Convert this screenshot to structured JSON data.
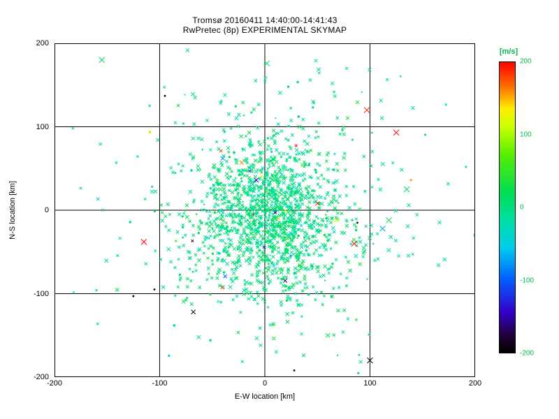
{
  "figure": {
    "background": "#ffffff",
    "axis_color": "#000000"
  },
  "chart_data": {
    "type": "scatter",
    "title_line1": "Tromsø 20160411 14:40:00-14:41:43",
    "title_line2": "RwPretec (8p) EXPERIMENTAL SKYMAP",
    "xlabel": "E-W location [km]",
    "ylabel": "N-S location [km]",
    "xlim": [
      -200,
      200
    ],
    "ylim": [
      -200,
      200
    ],
    "xticks": [
      -200,
      -100,
      0,
      100,
      200
    ],
    "yticks": [
      -200,
      -100,
      0,
      100,
      200
    ],
    "grid": true,
    "marker": "x",
    "point_base_color": "#00dd66",
    "colorbar": {
      "label": "[m/s]",
      "min": -200,
      "max": 200,
      "ticks": [
        200,
        100,
        0,
        -100,
        -200
      ],
      "label_color": "#00bb44",
      "stops": [
        [
          0.0,
          "#000000"
        ],
        [
          0.06,
          "#22003a"
        ],
        [
          0.14,
          "#3300cc"
        ],
        [
          0.26,
          "#0066ff"
        ],
        [
          0.36,
          "#00ccee"
        ],
        [
          0.46,
          "#00e0a0"
        ],
        [
          0.55,
          "#00dd55"
        ],
        [
          0.68,
          "#55ee00"
        ],
        [
          0.78,
          "#ccff00"
        ],
        [
          0.84,
          "#ffee00"
        ],
        [
          0.91,
          "#ff7700"
        ],
        [
          1.0,
          "#ff0000"
        ]
      ]
    },
    "cluster": {
      "seed": 20160411,
      "count": 1700,
      "center": [
        4,
        -8
      ],
      "component_weights": [
        0.78,
        0.22
      ],
      "sigma_x": [
        34,
        72
      ],
      "sigma_y": [
        44,
        88
      ],
      "value_sigma": 16,
      "stray_fraction": 0.015
    },
    "outliers": [
      {
        "x": -155,
        "y": 180,
        "v": 20,
        "m": "x",
        "s": 4
      },
      {
        "x": 2,
        "y": 176,
        "v": 10,
        "m": "x",
        "s": 4
      },
      {
        "x": -95,
        "y": 137,
        "v": -195,
        "m": "d",
        "s": 2
      },
      {
        "x": 125,
        "y": 93,
        "v": 195,
        "m": "x",
        "s": 4
      },
      {
        "x": 97,
        "y": 120,
        "v": 185,
        "m": "x",
        "s": 4
      },
      {
        "x": -115,
        "y": -38,
        "v": 200,
        "m": "x",
        "s": 4
      },
      {
        "x": 85,
        "y": -40,
        "v": 195,
        "m": "x",
        "s": 4
      },
      {
        "x": -125,
        "y": -103,
        "v": -190,
        "m": "d",
        "s": 2
      },
      {
        "x": -105,
        "y": -95,
        "v": -185,
        "m": "d",
        "s": 2
      },
      {
        "x": -68,
        "y": -122,
        "v": -200,
        "m": "x",
        "s": 3
      },
      {
        "x": 100,
        "y": -180,
        "v": -190,
        "m": "x",
        "s": 4
      },
      {
        "x": 135,
        "y": 25,
        "v": 15,
        "m": "x",
        "s": 4
      },
      {
        "x": 118,
        "y": -12,
        "v": 25,
        "m": "x",
        "s": 4
      },
      {
        "x": 112,
        "y": -22,
        "v": -70,
        "m": "x",
        "s": 4
      },
      {
        "x": 68,
        "y": -12,
        "v": 120,
        "m": "x",
        "s": 3
      },
      {
        "x": -40,
        "y": 62,
        "v": -80,
        "m": "x",
        "s": 3
      },
      {
        "x": -22,
        "y": 57,
        "v": 160,
        "m": "x",
        "s": 3
      },
      {
        "x": 50,
        "y": 8,
        "v": 190,
        "m": "x",
        "s": 3
      },
      {
        "x": -8,
        "y": 36,
        "v": -150,
        "m": "x",
        "s": 3
      },
      {
        "x": 28,
        "y": -192,
        "v": -195,
        "m": "d",
        "s": 2
      },
      {
        "x": 60,
        "y": -150,
        "v": 10,
        "m": "x",
        "s": 3
      },
      {
        "x": 88,
        "y": -15,
        "v": -190,
        "m": "d",
        "s": 2
      }
    ]
  }
}
